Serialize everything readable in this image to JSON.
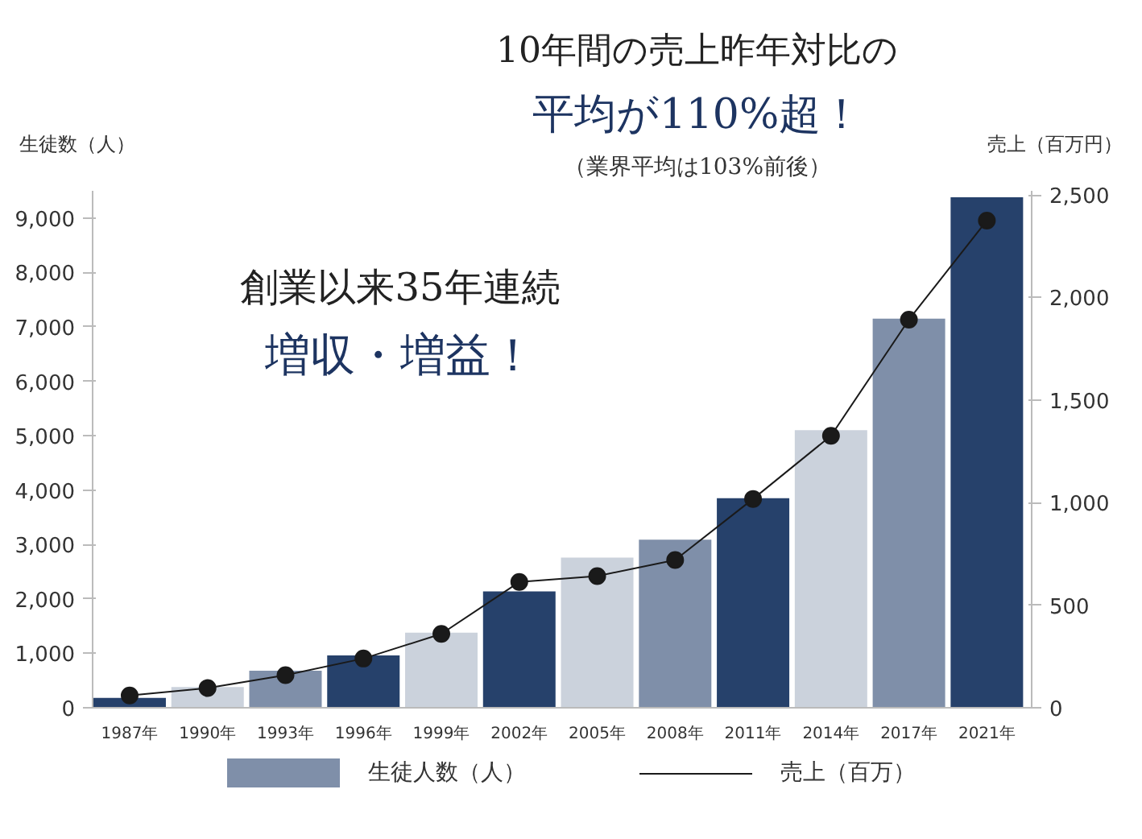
{
  "chart_data": {
    "type": "bar",
    "ylabel": "生徒数（人）",
    "y2label": "売上（百万円）",
    "categories": [
      "1987年",
      "1990年",
      "1993年",
      "1996年",
      "1999年",
      "2002年",
      "2005年",
      "2008年",
      "2011年",
      "2014年",
      "2017年",
      "2021年"
    ],
    "series": [
      {
        "name": "生徒人数（人）",
        "color": "#7f8fa9",
        "colors": [
          "#26416b",
          "#cbd2dc",
          "#7f8fa9",
          "#26416b",
          "#cbd2dc",
          "#26416b",
          "#cbd2dc",
          "#7f8fa9",
          "#26416b",
          "#cbd2dc",
          "#7f8fa9",
          "#26416b"
        ],
        "values": [
          180,
          380,
          680,
          960,
          1380,
          2140,
          2760,
          3090,
          3850,
          5100,
          7150,
          9380
        ]
      },
      {
        "name": "売上（百万）",
        "type": "line",
        "axis": "y2",
        "color": "#1a1a1a",
        "marker": "circle",
        "values": [
          60,
          96,
          159,
          240,
          360,
          613,
          642,
          720,
          1018,
          1326,
          1892,
          2375
        ]
      }
    ],
    "ylim": [
      0,
      9500
    ],
    "yticks": [
      {
        "value": 0,
        "label": "0"
      },
      {
        "value": 1000,
        "label": "1,000"
      },
      {
        "value": 2000,
        "label": "2,000"
      },
      {
        "value": 3000,
        "label": "3,000"
      },
      {
        "value": 4000,
        "label": "4,000"
      },
      {
        "value": 5000,
        "label": "5,000"
      },
      {
        "value": 6000,
        "label": "6,000"
      },
      {
        "value": 7000,
        "label": "7,000"
      },
      {
        "value": 8000,
        "label": "8,000"
      },
      {
        "value": 9000,
        "label": "9,000"
      }
    ],
    "y2lim": [
      0,
      2520
    ],
    "y2ticks": [
      {
        "value": 0,
        "label": "0"
      },
      {
        "value": 500,
        "label": "500"
      },
      {
        "value": 1000,
        "label": "1,000"
      },
      {
        "value": 1500,
        "label": "1,500"
      },
      {
        "value": 2000,
        "label": "2,000"
      },
      {
        "value": 2500,
        "label": "2,500"
      }
    ],
    "annotations": [
      "10年間の売上昨年対比の",
      "平均が110%超！",
      "（業界平均は103%前後）",
      "創業以来35年連続",
      "増収・増益！"
    ],
    "grid": false,
    "legend": "bottom"
  }
}
